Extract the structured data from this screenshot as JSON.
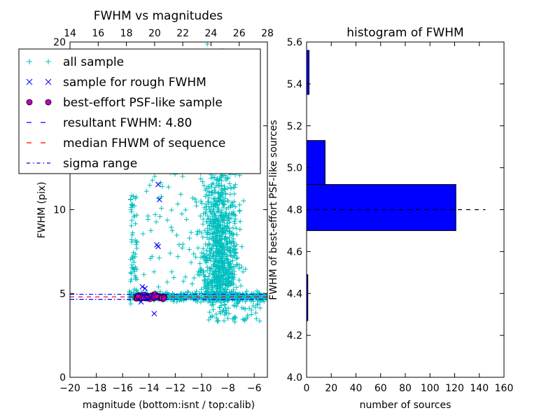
{
  "chart_data": [
    {
      "type": "scatter",
      "title": "FWHM vs magnitudes",
      "xlabel": "magnitude (bottom:isnt / top:calib)",
      "ylabel": "FWHM (pix)",
      "xlim": [
        -20,
        -5
      ],
      "ylim": [
        0,
        20
      ],
      "top_xlim": [
        14,
        28
      ],
      "x_ticks": [
        "−20",
        "−18",
        "−16",
        "−14",
        "−12",
        "−10",
        "−8",
        "−6"
      ],
      "x_tick_values": [
        -20,
        -18,
        -16,
        -14,
        -12,
        -10,
        -8,
        -6
      ],
      "top_x_ticks": [
        "14",
        "16",
        "18",
        "20",
        "22",
        "24",
        "26",
        "28"
      ],
      "top_x_tick_values": [
        14,
        16,
        18,
        20,
        22,
        24,
        26,
        28
      ],
      "y_ticks": [
        "0",
        "5",
        "10",
        "15",
        "20"
      ],
      "y_tick_values": [
        0,
        5,
        10,
        15,
        20
      ],
      "grid": false,
      "legend_placement": "top-left",
      "legend": [
        {
          "label": "all sample",
          "marker": "plus",
          "color": "#00bfbf"
        },
        {
          "label": "sample for rough FWHM",
          "marker": "x",
          "color": "#0000ff"
        },
        {
          "label": "best-effort PSF-like sample",
          "marker": "circle",
          "color": "#bf00bf"
        },
        {
          "label": "resultant FWHM: 4.80",
          "marker": "dashed",
          "color": "#0000ff"
        },
        {
          "label": "median FHWM of sequence",
          "marker": "dashed",
          "color": "#ff0000"
        },
        {
          "label": "sigma range",
          "marker": "dashdot",
          "color": "#0000ff"
        }
      ],
      "series": [
        {
          "name": "sample for rough FWHM",
          "points": [
            [
              -14.5,
              5.4
            ],
            [
              -14.3,
              5.3
            ],
            [
              -14.6,
              4.5
            ],
            [
              -14.2,
              4.7
            ],
            [
              -13.6,
              3.8
            ],
            [
              -13.3,
              11.5
            ],
            [
              -13.2,
              10.6
            ],
            [
              -13.4,
              7.9
            ],
            [
              -13.3,
              7.8
            ],
            [
              -14.4,
              4.9
            ],
            [
              -13.9,
              4.8
            ]
          ]
        }
      ],
      "hlines": [
        {
          "name": "resultant FWHM",
          "y": 4.8,
          "color": "#0000ff",
          "style": "dashed"
        },
        {
          "name": "median FHWM of sequence",
          "y": 4.8,
          "color": "#ff0000",
          "style": "dashed"
        },
        {
          "name": "sigma range upper",
          "y": 4.95,
          "color": "#0000ff",
          "style": "dashdot"
        },
        {
          "name": "sigma range lower",
          "y": 4.65,
          "color": "#0000ff",
          "style": "dashdot"
        }
      ]
    },
    {
      "type": "bar",
      "orientation": "horizontal",
      "title": "histogram of FWHM",
      "xlabel": "number of sources",
      "ylabel": "FWHM of best-effort PSF-like sources",
      "xlim": [
        0,
        160
      ],
      "ylim": [
        4.0,
        5.6
      ],
      "x_ticks": [
        "0",
        "20",
        "40",
        "60",
        "80",
        "100",
        "120",
        "140",
        "160"
      ],
      "x_tick_values": [
        0,
        20,
        40,
        60,
        80,
        100,
        120,
        140,
        160
      ],
      "y_ticks": [
        "4.0",
        "4.2",
        "4.4",
        "4.6",
        "4.8",
        "5.0",
        "5.2",
        "5.4",
        "5.6"
      ],
      "y_tick_values": [
        4.0,
        4.2,
        4.4,
        4.6,
        4.8,
        5.0,
        5.2,
        5.4,
        5.6
      ],
      "bars": [
        {
          "from": 4.27,
          "to": 4.49,
          "value": 1
        },
        {
          "from": 4.7,
          "to": 4.92,
          "value": 121
        },
        {
          "from": 4.92,
          "to": 5.13,
          "value": 15
        },
        {
          "from": 5.35,
          "to": 5.56,
          "value": 2
        }
      ],
      "bar_color": "#0000ff",
      "hline": {
        "y": 4.8,
        "style": "dashed",
        "color": "#000000"
      },
      "grid": false
    }
  ]
}
